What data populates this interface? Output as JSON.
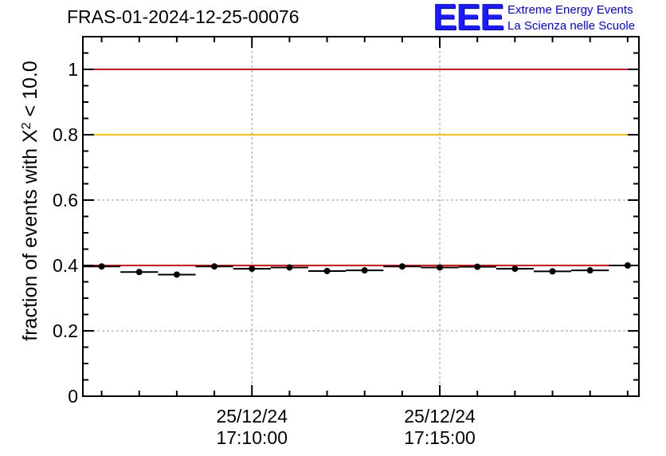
{
  "page": {
    "title": "FRAS-01-2024-12-25-00076"
  },
  "logo": {
    "mark": "EEE",
    "line1": "Extreme Energy Events",
    "line2": "La Scienza nelle Scuole"
  },
  "chart_data": {
    "type": "scatter",
    "title": "FRAS-01-2024-12-25-00076",
    "ylabel": "fraction of events with X² < 10.0",
    "xlabel": "",
    "ylim": [
      0,
      1.1
    ],
    "yticks": [
      0,
      0.2,
      0.4,
      0.6,
      0.8,
      1
    ],
    "ytick_labels": [
      "0",
      "0.2",
      "0.4",
      "0.6",
      "0.8",
      "1"
    ],
    "x_unit": "minutes after 17:00:00 on 25/12/24",
    "xlim": [
      5.5,
      20.3
    ],
    "xticks_major": [
      10,
      15
    ],
    "xtick_labels": [
      {
        "date": "25/12/24",
        "time": "17:10:00"
      },
      {
        "date": "25/12/24",
        "time": "17:15:00"
      }
    ],
    "xticks_minor": [
      6,
      7,
      8,
      9,
      11,
      12,
      13,
      14,
      16,
      17,
      18,
      19,
      20
    ],
    "grid": true,
    "reference_lines": [
      {
        "y": 1.0,
        "color": "#e8141a"
      },
      {
        "y": 0.8,
        "color": "#ffc400"
      },
      {
        "y": 0.4,
        "color": "#e8141a"
      }
    ],
    "series": [
      {
        "x": [
          6,
          7,
          8,
          9,
          10,
          11,
          12,
          13,
          14,
          15,
          16,
          17,
          18,
          19,
          20
        ],
        "y": [
          0.397,
          0.38,
          0.372,
          0.397,
          0.39,
          0.394,
          0.383,
          0.385,
          0.397,
          0.394,
          0.396,
          0.39,
          0.382,
          0.385,
          0.4
        ],
        "xerr": 0.5,
        "color": "#000000"
      }
    ]
  }
}
